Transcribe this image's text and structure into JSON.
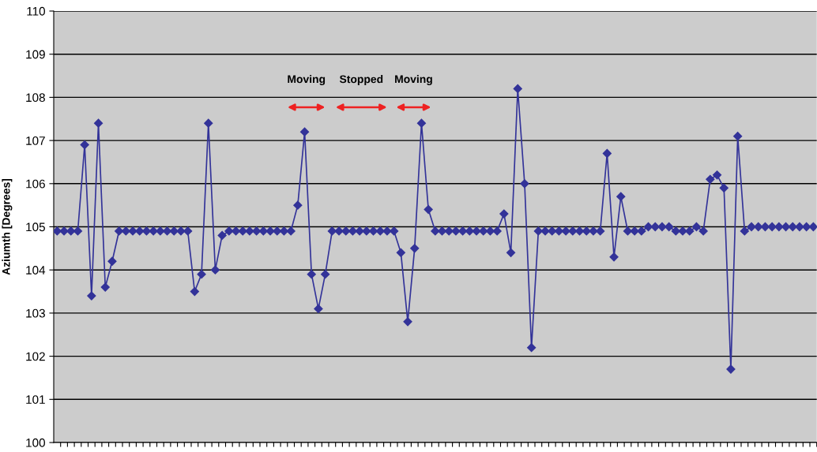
{
  "chart_data": {
    "type": "line",
    "ylabel": "Aziumth [Degrees]",
    "categories": [
      null,
      null,
      null,
      null,
      null,
      null,
      null,
      null,
      null,
      null,
      null,
      null,
      null,
      null,
      null,
      null,
      null,
      null,
      null,
      null,
      null,
      null,
      null,
      null,
      null,
      null,
      null,
      null,
      null,
      null,
      null,
      null,
      null,
      null,
      null,
      null,
      null,
      null,
      null,
      null,
      null,
      null,
      null,
      null,
      null,
      null,
      null,
      null,
      null,
      null,
      null,
      null,
      null,
      null,
      null,
      null,
      null,
      null,
      null,
      null,
      null,
      null,
      null,
      null,
      null,
      null,
      null,
      null,
      null,
      null,
      null,
      null,
      null,
      null,
      null,
      null,
      null,
      null,
      null,
      null,
      null,
      null,
      null,
      null,
      null,
      null,
      null,
      null,
      null,
      null,
      null,
      null,
      null,
      null,
      null,
      null,
      null,
      null,
      null,
      null,
      null,
      null,
      null,
      null,
      null,
      null,
      null,
      null,
      null,
      null,
      null
    ],
    "series": [
      {
        "color": "#333399",
        "values": [
          104.9,
          104.9,
          104.9,
          104.9,
          106.9,
          103.4,
          107.4,
          103.6,
          104.2,
          104.9,
          104.9,
          104.9,
          104.9,
          104.9,
          104.9,
          104.9,
          104.9,
          104.9,
          104.9,
          104.9,
          103.5,
          103.9,
          107.4,
          104.0,
          104.8,
          104.9,
          104.9,
          104.9,
          104.9,
          104.9,
          104.9,
          104.9,
          104.9,
          104.9,
          104.9,
          105.5,
          107.2,
          103.9,
          103.1,
          103.9,
          104.9,
          104.9,
          104.9,
          104.9,
          104.9,
          104.9,
          104.9,
          104.9,
          104.9,
          104.9,
          104.4,
          102.8,
          104.5,
          107.4,
          105.4,
          104.9,
          104.9,
          104.9,
          104.9,
          104.9,
          104.9,
          104.9,
          104.9,
          104.9,
          104.9,
          105.3,
          104.4,
          108.2,
          106.0,
          102.2,
          104.9,
          104.9,
          104.9,
          104.9,
          104.9,
          104.9,
          104.9,
          104.9,
          104.9,
          104.9,
          106.7,
          104.3,
          105.7,
          104.9,
          104.9,
          104.9,
          105.0,
          105.0,
          105.0,
          105.0,
          104.9,
          104.9,
          104.9,
          105.0,
          104.9,
          106.1,
          106.2,
          105.9,
          101.7,
          107.1,
          104.9,
          105.0,
          105.0,
          105.0,
          105.0,
          105.0,
          105.0,
          105.0,
          105.0,
          105.0,
          105.0
        ]
      }
    ],
    "ylim": [
      100,
      110
    ],
    "yticks": [
      100,
      101,
      102,
      103,
      104,
      105,
      106,
      107,
      108,
      109,
      110
    ],
    "grid": "y",
    "marker": "diamond",
    "line_style": "solid",
    "tick_labels": "y",
    "annotations": [
      "Moving",
      "Stopped",
      "Moving"
    ]
  }
}
